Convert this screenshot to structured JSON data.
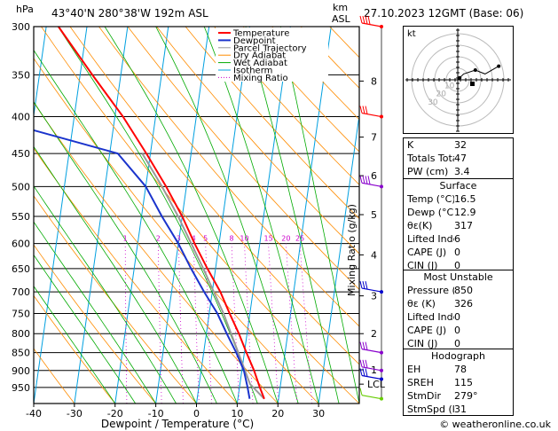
{
  "header": {
    "hpa_label": "hPa",
    "location": "43°40'N  280°38'W  192m  ASL",
    "km_label": "km",
    "asl_label": "ASL",
    "datetime": "27.10.2023  12GMT  (Base: 06)"
  },
  "chart_data": {
    "type": "line",
    "xlabel": "Dewpoint / Temperature (°C)",
    "ylabel": "hPa",
    "mixing_axis_label": "Mixing Ratio (g/kg)",
    "pressure_ticks": [
      300,
      350,
      400,
      450,
      500,
      550,
      600,
      650,
      700,
      750,
      800,
      850,
      900,
      950
    ],
    "temp_ticks": [
      -40,
      -30,
      -20,
      -10,
      0,
      10,
      20,
      30
    ],
    "xlim": [
      -40,
      40
    ],
    "ylim": [
      1000,
      300
    ],
    "km_ticks": [
      {
        "label": "8",
        "p": 357
      },
      {
        "label": "7",
        "p": 427
      },
      {
        "label": "6",
        "p": 483
      },
      {
        "label": "5",
        "p": 547
      },
      {
        "label": "4",
        "p": 622
      },
      {
        "label": "3",
        "p": 709
      },
      {
        "label": "2",
        "p": 800
      },
      {
        "label": "1",
        "p": 898
      },
      {
        "label": "LCL",
        "p": 940
      }
    ],
    "mixing_ratio_labels": [
      {
        "label": "1",
        "w": 1
      },
      {
        "label": "2",
        "w": 2
      },
      {
        "label": "3",
        "w": 3
      },
      {
        "label": "4",
        "w": 4
      },
      {
        "label": "5",
        "w": 5
      },
      {
        "label": "8",
        "w": 8
      },
      {
        "label": "10",
        "w": 10
      },
      {
        "label": "15",
        "w": 15
      },
      {
        "label": "20",
        "w": 20
      },
      {
        "label": "25",
        "w": 25
      }
    ],
    "legend": [
      {
        "name": "Temperature",
        "color": "#ff0000"
      },
      {
        "name": "Dewpoint",
        "color": "#1a33cc"
      },
      {
        "name": "Parcel Trajectory",
        "color": "#999999"
      },
      {
        "name": "Dry Adiabat",
        "color": "#ff8c00"
      },
      {
        "name": "Wet Adiabat",
        "color": "#00aa00"
      },
      {
        "name": "Isotherm",
        "color": "#00a0e0"
      },
      {
        "name": "Mixing Ratio",
        "color": "#cc00cc"
      }
    ],
    "temperature": [
      {
        "p": 985,
        "t": 16.5
      },
      {
        "p": 950,
        "t": 15
      },
      {
        "p": 900,
        "t": 13
      },
      {
        "p": 850,
        "t": 10.5
      },
      {
        "p": 800,
        "t": 8
      },
      {
        "p": 750,
        "t": 5
      },
      {
        "p": 700,
        "t": 2
      },
      {
        "p": 650,
        "t": -2
      },
      {
        "p": 600,
        "t": -6
      },
      {
        "p": 550,
        "t": -10
      },
      {
        "p": 500,
        "t": -15
      },
      {
        "p": 450,
        "t": -21
      },
      {
        "p": 400,
        "t": -28
      },
      {
        "p": 350,
        "t": -37
      },
      {
        "p": 300,
        "t": -47
      }
    ],
    "dewpoint": [
      {
        "p": 985,
        "t": 12.9
      },
      {
        "p": 950,
        "t": 12
      },
      {
        "p": 900,
        "t": 10.5
      },
      {
        "p": 850,
        "t": 8
      },
      {
        "p": 800,
        "t": 5
      },
      {
        "p": 750,
        "t": 2
      },
      {
        "p": 700,
        "t": -2
      },
      {
        "p": 650,
        "t": -6
      },
      {
        "p": 600,
        "t": -10
      },
      {
        "p": 550,
        "t": -15
      },
      {
        "p": 500,
        "t": -20
      },
      {
        "p": 450,
        "t": -28
      },
      {
        "p": 400,
        "t": -62
      },
      {
        "p": 350,
        "t": -62
      },
      {
        "p": 300,
        "t": -68
      }
    ],
    "parcel": [
      {
        "p": 985,
        "t": 16.5
      },
      {
        "p": 940,
        "t": 12.5
      },
      {
        "p": 850,
        "t": 8.5
      },
      {
        "p": 750,
        "t": 3.5
      },
      {
        "p": 650,
        "t": -3
      },
      {
        "p": 550,
        "t": -11
      },
      {
        "p": 500,
        "t": -16
      },
      {
        "p": 450,
        "t": -22
      }
    ],
    "wind_barbs": [
      {
        "p": 300,
        "color": "#ff0000",
        "feathers": 4
      },
      {
        "p": 400,
        "color": "#ff0000",
        "feathers": 3
      },
      {
        "p": 500,
        "color": "#8800cc",
        "feathers": 4
      },
      {
        "p": 700,
        "color": "#0000cc",
        "feathers": 3
      },
      {
        "p": 850,
        "color": "#8800cc",
        "feathers": 3
      },
      {
        "p": 900,
        "color": "#8800cc",
        "feathers": 3
      },
      {
        "p": 925,
        "color": "#0000cc",
        "feathers": 3
      },
      {
        "p": 985,
        "color": "#66cc00",
        "feathers": 1
      }
    ],
    "hodograph": {
      "label": "kt",
      "ring_labels": [
        "10",
        "20",
        "30"
      ],
      "trace": [
        [
          0,
          0
        ],
        [
          1,
          -1
        ],
        [
          3,
          -3
        ],
        [
          9,
          -5
        ],
        [
          14,
          -3
        ],
        [
          21,
          -7
        ]
      ]
    }
  },
  "indices": [
    {
      "label": "K",
      "value": "32"
    },
    {
      "label": "Totals Totals",
      "value": "47"
    },
    {
      "label": "PW (cm)",
      "value": "3.4"
    }
  ],
  "surface": {
    "title": "Surface",
    "rows": [
      {
        "label": "Temp (°C)",
        "value": "16.5"
      },
      {
        "label": "Dewp (°C)",
        "value": "12.9"
      },
      {
        "label": "θε(K)",
        "value": "317"
      },
      {
        "label": "Lifted Index",
        "value": "6"
      },
      {
        "label": "CAPE (J)",
        "value": "0"
      },
      {
        "label": "CIN (J)",
        "value": "0"
      }
    ]
  },
  "unstable": {
    "title": "Most Unstable",
    "rows": [
      {
        "label": "Pressure (mb)",
        "value": "850"
      },
      {
        "label": "θε (K)",
        "value": "326"
      },
      {
        "label": "Lifted Index",
        "value": "0"
      },
      {
        "label": "CAPE (J)",
        "value": "0"
      },
      {
        "label": "CIN (J)",
        "value": "0"
      }
    ]
  },
  "hodo_table": {
    "title": "Hodograph",
    "rows": [
      {
        "label": "EH",
        "value": "78"
      },
      {
        "label": "SREH",
        "value": "115"
      },
      {
        "label": "StmDir",
        "value": "279°"
      },
      {
        "label": "StmSpd (kt)",
        "value": "31"
      }
    ]
  },
  "copyright": "© weatheronline.co.uk"
}
